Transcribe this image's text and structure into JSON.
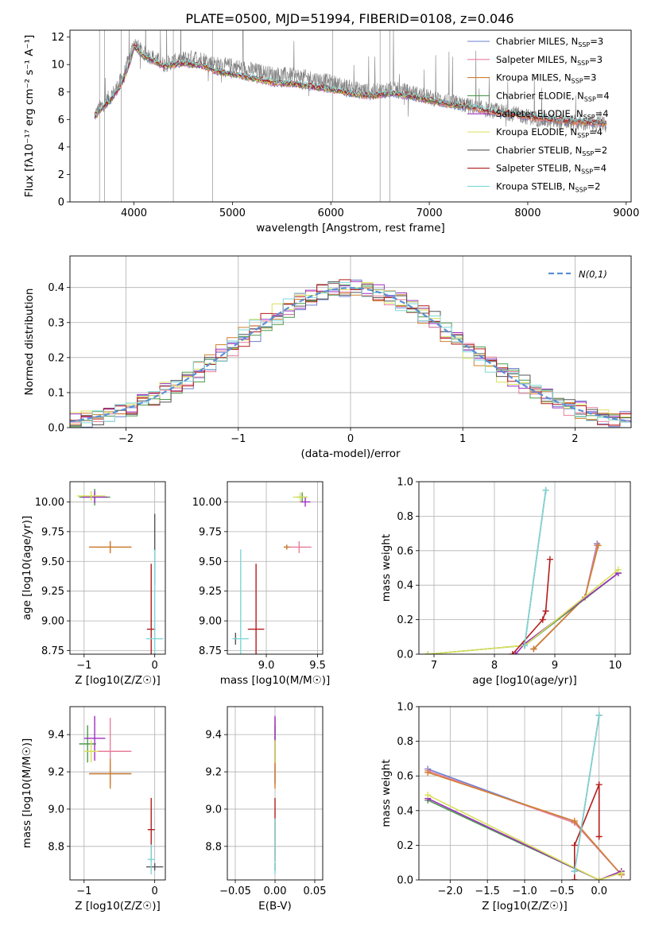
{
  "figure": {
    "title": "PLATE=0500, MJD=51994, FIBERID=0108, z=0.046"
  },
  "chart_data": [
    {
      "id": "spectrum",
      "type": "line",
      "xlabel": "wavelength [Angstrom, rest frame]",
      "ylabel": "Flux [fλ10⁻¹⁷ erg cm⁻² s⁻¹ A⁻¹]",
      "xlim": [
        3350,
        9050
      ],
      "ylim": [
        0,
        12.5
      ],
      "xticks": [
        4000,
        5000,
        6000,
        7000,
        8000,
        9000
      ],
      "yticks": [
        0,
        2,
        4,
        6,
        8,
        10,
        12
      ],
      "grid": false,
      "legend_position": "top-right",
      "data_line": {
        "color": "#808080",
        "x": [
          3600,
          3650,
          3700,
          3750,
          3800,
          3850,
          3900,
          3950,
          4000,
          4050,
          4100,
          4200,
          4300,
          4400,
          4500,
          4600,
          4700,
          4800,
          4900,
          5000,
          5200,
          5400,
          5600,
          5800,
          6000,
          6200,
          6400,
          6600,
          6800,
          7000,
          7200,
          7400,
          7600,
          7800,
          8000,
          8200,
          8400,
          8600,
          8800
        ],
        "y": [
          6.3,
          6.8,
          7.2,
          7.6,
          8.0,
          8.6,
          9.3,
          10.4,
          11.6,
          11.2,
          10.8,
          10.5,
          10.0,
          10.2,
          10.4,
          10.5,
          10.4,
          10.1,
          9.9,
          9.9,
          9.6,
          9.3,
          9.2,
          9.0,
          8.7,
          8.3,
          8.0,
          8.2,
          8.0,
          7.6,
          7.3,
          7.0,
          6.7,
          6.5,
          6.2,
          5.9,
          5.8,
          5.7,
          5.6
        ]
      },
      "series": [
        {
          "name": "Chabrier MILES, N",
          "sub": "SSP",
          "suffix": "=3",
          "color": "#6a7fd0"
        },
        {
          "name": "Salpeter MILES, N",
          "sub": "SSP",
          "suffix": "=3",
          "color": "#e87e9b"
        },
        {
          "name": "Kroupa MILES, N",
          "sub": "SSP",
          "suffix": "=3",
          "color": "#cf7f2e"
        },
        {
          "name": "Chabrier ELODIE, N",
          "sub": "SSP",
          "suffix": "=4",
          "color": "#4c9a4c"
        },
        {
          "name": "Salpeter ELODIE, N",
          "sub": "SSP",
          "suffix": "=4",
          "color": "#9b2fc0"
        },
        {
          "name": "Kroupa ELODIE, N",
          "sub": "SSP",
          "suffix": "=4",
          "color": "#d8e05a"
        },
        {
          "name": "Chabrier STELIB, N",
          "sub": "SSP",
          "suffix": "=2",
          "color": "#555555"
        },
        {
          "name": "Salpeter STELIB, N",
          "sub": "SSP",
          "suffix": "=4",
          "color": "#b31d1d"
        },
        {
          "name": "Kroupa STELIB, N",
          "sub": "SSP",
          "suffix": "=2",
          "color": "#7fd7d7"
        }
      ],
      "model_x": [
        3600,
        3650,
        3700,
        3750,
        3800,
        3850,
        3900,
        3950,
        4000,
        4050,
        4100,
        4200,
        4300,
        4400,
        4500,
        4600,
        4700,
        4800,
        4900,
        5000,
        5200,
        5400,
        5600,
        5800,
        6000,
        6200,
        6400,
        6600,
        6800,
        7000,
        7200,
        7400,
        7600,
        7800,
        8000,
        8200,
        8400,
        8600,
        8800
      ],
      "model_y": [
        6.2,
        6.6,
        7.0,
        7.3,
        7.8,
        8.3,
        9.0,
        10.0,
        11.3,
        11.0,
        10.6,
        10.3,
        9.9,
        10.0,
        10.1,
        10.0,
        9.9,
        9.6,
        9.4,
        9.3,
        9.0,
        8.7,
        8.6,
        8.4,
        8.2,
        7.9,
        7.7,
        7.9,
        7.7,
        7.4,
        7.1,
        6.9,
        6.6,
        6.4,
        6.2,
        6.0,
        5.9,
        5.8,
        5.7
      ],
      "model_ranges": [
        [
          3600,
          8800
        ],
        [
          3600,
          8800
        ],
        [
          3600,
          8800
        ],
        [
          3600,
          7400
        ],
        [
          3600,
          7400
        ],
        [
          3600,
          7400
        ],
        [
          3600,
          8800
        ],
        [
          3600,
          8800
        ],
        [
          3600,
          8800
        ]
      ]
    },
    {
      "id": "residuals",
      "type": "line",
      "xlabel": "(data-model)/error",
      "ylabel": "Normed distribution",
      "xlim": [
        -2.5,
        2.5
      ],
      "ylim": [
        0,
        0.49
      ],
      "xticks": [
        -2,
        -1,
        0,
        1,
        2
      ],
      "yticks": [
        0.0,
        0.1,
        0.2,
        0.3,
        0.4
      ],
      "grid": true,
      "legend_position": "top-right",
      "reference": {
        "name": "N(0,1)",
        "color": "#5b8fd6"
      },
      "bin_width": 0.1
    },
    {
      "id": "age-vs-Z",
      "type": "scatter",
      "xlabel": "Z [log10(Z/Z☉)]",
      "ylabel": "age  [log10(age/yr)]",
      "xlim": [
        -1.2,
        0.15
      ],
      "ylim": [
        8.72,
        10.17
      ],
      "xticks": [
        -1,
        0
      ],
      "yticks": [
        8.75,
        9.0,
        9.25,
        9.5,
        9.75,
        10.0
      ],
      "grid": true,
      "points": [
        {
          "x": -0.63,
          "y": 9.62,
          "xerr": 0.3,
          "yerr": 0.05,
          "color": "#6a7fd0"
        },
        {
          "x": -0.63,
          "y": 9.62,
          "xerr": 0.3,
          "yerr": 0.05,
          "color": "#e87e9b"
        },
        {
          "x": -0.63,
          "y": 9.62,
          "xerr": 0.3,
          "yerr": 0.05,
          "color": "#cf7f2e"
        },
        {
          "x": -0.85,
          "y": 10.04,
          "xerr": 0.22,
          "yerr": 0.07,
          "color": "#4c9a4c"
        },
        {
          "x": -0.85,
          "y": 10.04,
          "xerr": 0.18,
          "yerr": 0.05,
          "color": "#9b2fc0"
        },
        {
          "x": -0.9,
          "y": 10.05,
          "xerr": 0.2,
          "yerr": 0.04,
          "color": "#d8e05a"
        },
        {
          "x": 0.0,
          "y": 9.6,
          "xerr": 0.01,
          "yerr": 0.3,
          "color": "#555555"
        },
        {
          "x": -0.05,
          "y": 8.93,
          "xerr": 0.06,
          "yerr": 0.55,
          "color": "#b31d1d"
        },
        {
          "x": 0.0,
          "y": 8.85,
          "xerr": 0.12,
          "yerr": 0.75,
          "color": "#7fd7d7"
        }
      ]
    },
    {
      "id": "age-vs-mass",
      "type": "scatter",
      "xlabel": "mass [log10(M/M☉)]",
      "ylabel": "",
      "xlim": [
        8.62,
        9.55
      ],
      "ylim": [
        8.72,
        10.17
      ],
      "xticks": [
        8.5,
        9.0,
        9.5
      ],
      "yticks": [
        8.75,
        9.0,
        9.25,
        9.5,
        9.75,
        10.0
      ],
      "grid": true,
      "points": [
        {
          "x": 9.2,
          "y": 9.62,
          "xerr": 0.03,
          "yerr": 0.02,
          "color": "#6a7fd0"
        },
        {
          "x": 9.32,
          "y": 9.62,
          "xerr": 0.12,
          "yerr": 0.05,
          "color": "#e87e9b"
        },
        {
          "x": 9.2,
          "y": 9.62,
          "xerr": 0.03,
          "yerr": 0.02,
          "color": "#cf7f2e"
        },
        {
          "x": 9.35,
          "y": 10.04,
          "xerr": 0.05,
          "yerr": 0.04,
          "color": "#4c9a4c"
        },
        {
          "x": 9.38,
          "y": 10.0,
          "xerr": 0.05,
          "yerr": 0.04,
          "color": "#9b2fc0"
        },
        {
          "x": 9.33,
          "y": 10.04,
          "xerr": 0.07,
          "yerr": 0.04,
          "color": "#d8e05a"
        },
        {
          "x": 8.7,
          "y": 8.85,
          "xerr": 0.01,
          "yerr": 0.05,
          "color": "#555555"
        },
        {
          "x": 8.9,
          "y": 8.93,
          "xerr": 0.08,
          "yerr": 0.55,
          "color": "#b31d1d"
        },
        {
          "x": 8.75,
          "y": 8.85,
          "xerr": 0.08,
          "yerr": 0.75,
          "color": "#7fd7d7"
        }
      ]
    },
    {
      "id": "massweight-vs-age",
      "type": "line",
      "xlabel": "age  [log10(age/yr)]",
      "ylabel": "mass weight",
      "xlim": [
        6.75,
        10.25
      ],
      "ylim": [
        0,
        1.0
      ],
      "xticks": [
        7,
        8,
        9,
        10
      ],
      "yticks": [
        0.0,
        0.2,
        0.4,
        0.6,
        0.8,
        1.0
      ],
      "grid": true,
      "series": [
        {
          "color": "#6a7fd0",
          "x": [
            8.65,
            9.5,
            9.7
          ],
          "y": [
            0.03,
            0.33,
            0.64
          ]
        },
        {
          "color": "#e87e9b",
          "x": [
            8.65,
            9.5,
            9.7
          ],
          "y": [
            0.03,
            0.33,
            0.63
          ]
        },
        {
          "color": "#cf7f2e",
          "x": [
            8.65,
            9.5,
            9.72
          ],
          "y": [
            0.03,
            0.33,
            0.63
          ]
        },
        {
          "color": "#4c9a4c",
          "x": [
            6.9,
            8.5,
            10.05
          ],
          "y": [
            0.0,
            0.05,
            0.47
          ]
        },
        {
          "color": "#9b2fc0",
          "x": [
            8.35,
            8.5,
            10.05
          ],
          "y": [
            0.0,
            0.06,
            0.47
          ]
        },
        {
          "color": "#d8e05a",
          "x": [
            6.9,
            8.5,
            10.05
          ],
          "y": [
            0.0,
            0.05,
            0.49
          ]
        },
        {
          "color": "#555555",
          "x": [
            8.5,
            8.85
          ],
          "y": [
            0.05,
            0.95
          ]
        },
        {
          "color": "#b31d1d",
          "x": [
            8.3,
            8.8,
            8.85,
            8.92
          ],
          "y": [
            0.0,
            0.2,
            0.25,
            0.55
          ]
        },
        {
          "color": "#7fd7d7",
          "x": [
            8.5,
            8.85
          ],
          "y": [
            0.05,
            0.95
          ]
        }
      ]
    },
    {
      "id": "mass-vs-Z",
      "type": "scatter",
      "xlabel": "Z [log10(Z/Z☉)]",
      "ylabel": "mass [log10(M/M☉)]",
      "xlim": [
        -1.2,
        0.15
      ],
      "ylim": [
        8.62,
        9.55
      ],
      "xticks": [
        -1,
        0
      ],
      "yticks": [
        8.8,
        9.0,
        9.2,
        9.4
      ],
      "grid": true,
      "points": [
        {
          "x": -0.63,
          "y": 9.19,
          "xerr": 0.3,
          "yerr": 0.05,
          "color": "#6a7fd0"
        },
        {
          "x": -0.63,
          "y": 9.31,
          "xerr": 0.3,
          "yerr": 0.18,
          "color": "#e87e9b"
        },
        {
          "x": -0.63,
          "y": 9.19,
          "xerr": 0.3,
          "yerr": 0.08,
          "color": "#cf7f2e"
        },
        {
          "x": -0.95,
          "y": 9.35,
          "xerr": 0.12,
          "yerr": 0.1,
          "color": "#4c9a4c"
        },
        {
          "x": -0.85,
          "y": 9.38,
          "xerr": 0.15,
          "yerr": 0.12,
          "color": "#9b2fc0"
        },
        {
          "x": -0.9,
          "y": 9.31,
          "xerr": 0.1,
          "yerr": 0.06,
          "color": "#d8e05a"
        },
        {
          "x": 0.0,
          "y": 8.69,
          "xerr": 0.12,
          "yerr": 0.02,
          "color": "#555555"
        },
        {
          "x": -0.05,
          "y": 8.89,
          "xerr": 0.05,
          "yerr": 0.17,
          "color": "#b31d1d"
        },
        {
          "x": -0.05,
          "y": 8.73,
          "xerr": 0.05,
          "yerr": 0.08,
          "color": "#7fd7d7"
        }
      ]
    },
    {
      "id": "mass-vs-EBV",
      "type": "scatter",
      "xlabel": "E(B-V)",
      "ylabel": "",
      "xlim": [
        -0.06,
        0.06
      ],
      "ylim": [
        8.62,
        9.55
      ],
      "xticks": [
        -0.05,
        0.0,
        0.05
      ],
      "yticks": [
        8.8,
        9.0,
        9.2,
        9.4
      ],
      "grid": true,
      "points": [
        {
          "x": 0.0,
          "y": 9.19,
          "xerr": 0.0,
          "yerr": 0.05,
          "color": "#6a7fd0"
        },
        {
          "x": 0.0,
          "y": 9.31,
          "xerr": 0.0,
          "yerr": 0.18,
          "color": "#e87e9b"
        },
        {
          "x": 0.0,
          "y": 9.19,
          "xerr": 0.0,
          "yerr": 0.08,
          "color": "#cf7f2e"
        },
        {
          "x": 0.0,
          "y": 9.35,
          "xerr": 0.0,
          "yerr": 0.1,
          "color": "#4c9a4c"
        },
        {
          "x": 0.0,
          "y": 9.38,
          "xerr": 0.0,
          "yerr": 0.12,
          "color": "#9b2fc0"
        },
        {
          "x": 0.0,
          "y": 9.31,
          "xerr": 0.0,
          "yerr": 0.06,
          "color": "#d8e05a"
        },
        {
          "x": 0.0,
          "y": 8.69,
          "xerr": 0.0,
          "yerr": 0.02,
          "color": "#555555"
        },
        {
          "x": 0.0,
          "y": 8.89,
          "xerr": 0.0,
          "yerr": 0.17,
          "color": "#b31d1d"
        },
        {
          "x": 0.0,
          "y": 8.8,
          "xerr": 0.0,
          "yerr": 0.15,
          "color": "#7fd7d7"
        }
      ]
    },
    {
      "id": "massweight-vs-Z",
      "type": "line",
      "xlabel": "Z [log10(Z/Z☉)]",
      "ylabel": "mass weight",
      "xlim": [
        -2.42,
        0.42
      ],
      "ylim": [
        0,
        1.0
      ],
      "xticks": [
        -2.0,
        -1.5,
        -1.0,
        -0.5,
        0.0
      ],
      "yticks": [
        0.0,
        0.2,
        0.4,
        0.6,
        0.8,
        1.0
      ],
      "grid": true,
      "series": [
        {
          "color": "#6a7fd0",
          "x": [
            -2.3,
            -0.33,
            0.3
          ],
          "y": [
            0.64,
            0.33,
            0.03
          ]
        },
        {
          "color": "#e87e9b",
          "x": [
            -2.3,
            -0.33,
            0.3
          ],
          "y": [
            0.63,
            0.33,
            0.03
          ]
        },
        {
          "color": "#cf7f2e",
          "x": [
            -2.3,
            -0.33,
            0.3
          ],
          "y": [
            0.62,
            0.34,
            0.03
          ]
        },
        {
          "color": "#4c9a4c",
          "x": [
            -2.3,
            0.0,
            0.3
          ],
          "y": [
            0.46,
            0.0,
            0.05
          ]
        },
        {
          "color": "#9b2fc0",
          "x": [
            -2.3,
            0.0,
            0.3
          ],
          "y": [
            0.47,
            0.0,
            0.05
          ]
        },
        {
          "color": "#d8e05a",
          "x": [
            -2.3,
            0.0,
            0.3
          ],
          "y": [
            0.49,
            0.0,
            0.04
          ]
        },
        {
          "color": "#555555",
          "x": [
            -0.33,
            0.0
          ],
          "y": [
            0.05,
            0.95
          ]
        },
        {
          "color": "#b31d1d",
          "x": [
            -0.33,
            -0.33,
            0.0,
            0.0
          ],
          "y": [
            0.0,
            0.2,
            0.55,
            0.25
          ]
        },
        {
          "color": "#7fd7d7",
          "x": [
            -0.33,
            0.0
          ],
          "y": [
            0.05,
            0.95
          ]
        }
      ]
    }
  ]
}
